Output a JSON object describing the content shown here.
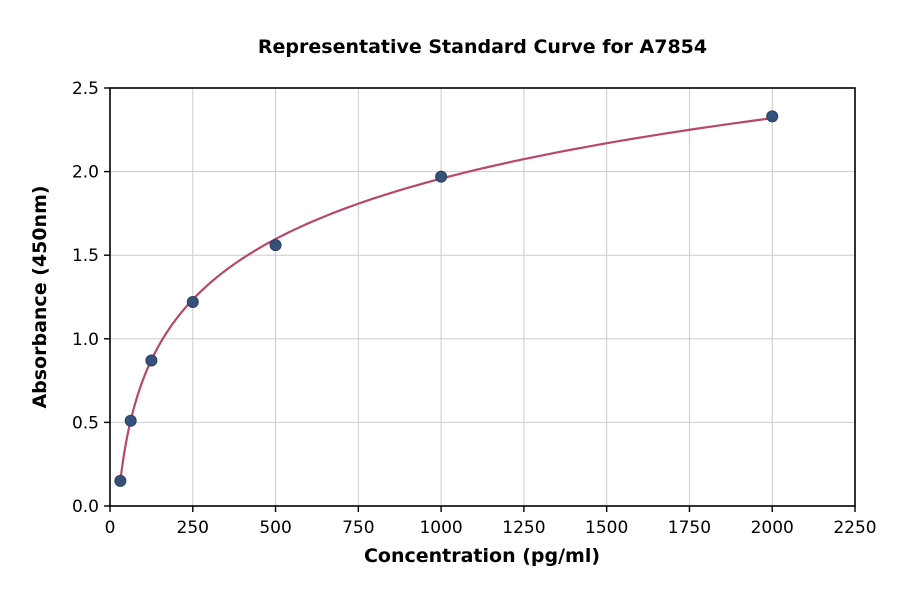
{
  "chart_data": {
    "type": "scatter",
    "title": "Representative Standard Curve for A7854",
    "xlabel": "Concentration (pg/ml)",
    "ylabel": "Absorbance (450nm)",
    "xlim": [
      0,
      2250
    ],
    "ylim": [
      0,
      2.5
    ],
    "xticks": [
      0,
      250,
      500,
      750,
      1000,
      1250,
      1500,
      1750,
      2000,
      2250
    ],
    "yticks": [
      0.0,
      0.5,
      1.0,
      1.5,
      2.0,
      2.5
    ],
    "grid": true,
    "points": {
      "x": [
        31.25,
        62.5,
        125,
        250,
        500,
        1000,
        2000
      ],
      "y": [
        0.15,
        0.51,
        0.87,
        1.22,
        1.56,
        1.97,
        2.33
      ]
    },
    "fit_curve": {
      "type": "logarithmic",
      "a": 0.5216,
      "b": -1.645,
      "x_start": 31.25,
      "x_end": 2000
    },
    "colors": {
      "curve": "#b8476d",
      "marker": "#36527c",
      "marker_edge": "#2b3f5c",
      "grid": "#cccccc",
      "axis": "#000000"
    }
  }
}
